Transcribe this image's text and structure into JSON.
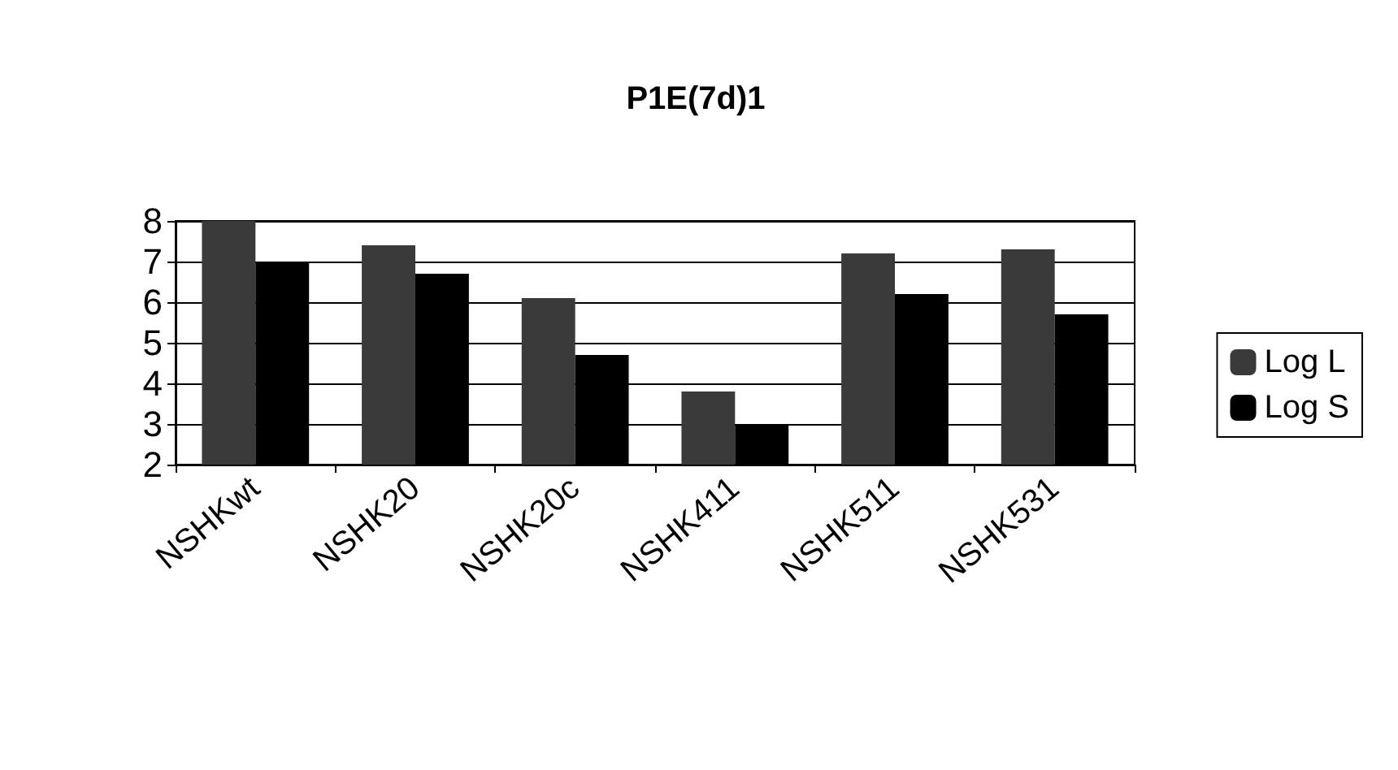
{
  "chart_data": {
    "type": "bar",
    "title": "P1E(7d)1",
    "categories": [
      "NSHKwt",
      "NSHK20",
      "NSHK20c",
      "NSHK411",
      "NSHK511",
      "NSHK531"
    ],
    "series": [
      {
        "name": "Log L",
        "color": "#3a3a3a",
        "values": [
          8,
          7.4,
          6.1,
          3.8,
          7.2,
          7.3
        ]
      },
      {
        "name": "Log S",
        "color": "#000000",
        "values": [
          7,
          6.7,
          4.7,
          3,
          6.2,
          5.7
        ]
      }
    ],
    "ylim": [
      2,
      8
    ],
    "yticks": [
      2,
      3,
      4,
      5,
      6,
      7,
      8
    ],
    "grid": "y",
    "legend": "right"
  }
}
